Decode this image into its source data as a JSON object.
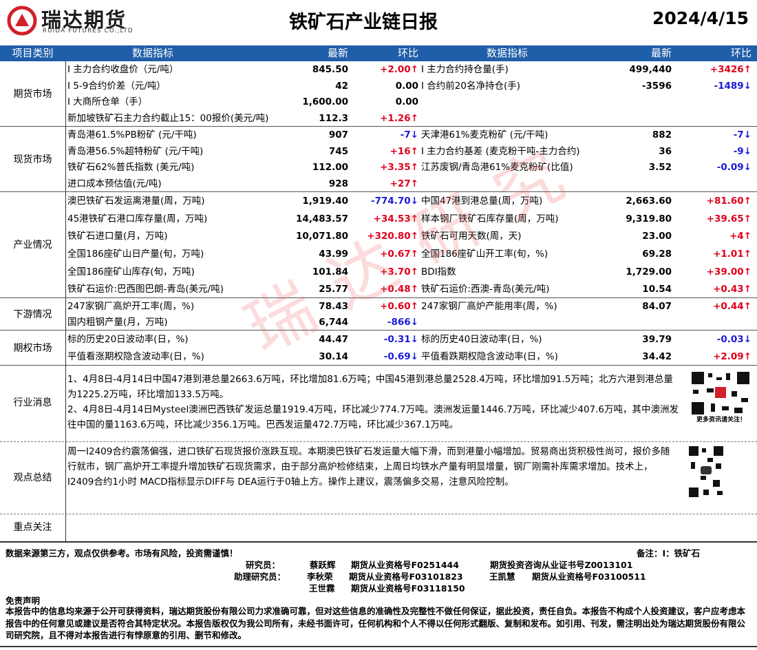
{
  "header": {
    "logo_name": "瑞达期货",
    "logo_sub": "RUIDA FUTURES CO.,LTD",
    "title": "铁矿石产业链日报",
    "date": "2024/4/15"
  },
  "columns": [
    "项目类别",
    "数据指标",
    "最新",
    "环比",
    "数据指标",
    "最新",
    "环比"
  ],
  "sections": [
    {
      "category": "期货市场",
      "rows": [
        {
          "left": {
            "name": "I 主力合约收盘价（元/吨）",
            "latest": "845.50",
            "change": "+2.00↑"
          },
          "right": {
            "name": "I 主力合约持仓量(手)",
            "latest": "499,440",
            "change": "+3426↑"
          }
        },
        {
          "left": {
            "name": "I 5-9合约价差（元/吨）",
            "latest": "42",
            "change": "0.00"
          },
          "right": {
            "name": "I 合约前20名净持仓(手)",
            "latest": "-3596",
            "change": "-1489↓"
          }
        },
        {
          "left": {
            "name": "I 大商所仓单（手）",
            "latest": "1,600.00",
            "change": "0.00"
          }
        },
        {
          "left": {
            "name": "新加坡铁矿石主力合约截止15：00报价(美元/吨)",
            "latest": "112.3",
            "change": "+1.26↑"
          }
        }
      ]
    },
    {
      "category": "现货市场",
      "rows": [
        {
          "left": {
            "name": "青岛港61.5%PB粉矿 (元/干吨)",
            "latest": "907",
            "change": "-7↓"
          },
          "right": {
            "name": "天津港61%麦克粉矿 (元/干吨)",
            "latest": "882",
            "change": "-7↓"
          }
        },
        {
          "left": {
            "name": "青岛港56.5%超特粉矿 (元/干吨)",
            "latest": "745",
            "change": "+16↑"
          },
          "right": {
            "name": "I 主力合约基差 (麦克粉干吨-主力合约)",
            "latest": "36",
            "change": "-9↓"
          }
        },
        {
          "left": {
            "name": "铁矿石62%普氏指数 (美元/吨)",
            "latest": "112.00",
            "change": "+3.35↑"
          },
          "right": {
            "name": "江苏废钢/青岛港61%麦克粉矿(比值)",
            "latest": "3.52",
            "change": "-0.09↓"
          }
        },
        {
          "left": {
            "name": "进口成本预估值(元/吨)",
            "latest": "928",
            "change": "+27↑"
          }
        }
      ]
    },
    {
      "category": "产业情况",
      "rows": [
        {
          "left": {
            "name": "澳巴铁矿石发运离港量(周，万吨)",
            "latest": "1,919.40",
            "change": "-774.70↓"
          },
          "right": {
            "name": "中国47港到港总量(周，万吨)",
            "latest": "2,663.60",
            "change": "+81.60↑"
          }
        },
        {
          "left": {
            "name": "45港铁矿石港口库存量(周，万吨)",
            "latest": "14,483.57",
            "change": "+34.53↑"
          },
          "right": {
            "name": "样本钢厂铁矿石库存量(周，万吨)",
            "latest": "9,319.80",
            "change": "+39.65↑"
          }
        },
        {
          "left": {
            "name": "铁矿石进口量(月，万吨)",
            "latest": "10,071.80",
            "change": "+320.80↑"
          },
          "right": {
            "name": "铁矿石可用天数(周，天)",
            "latest": "23.00",
            "change": "+4↑"
          }
        },
        {
          "left": {
            "name": "全国186座矿山日产量(旬，万吨)",
            "latest": "43.99",
            "change": "+0.67↑"
          },
          "right": {
            "name": "全国186座矿山开工率(旬，%)",
            "latest": "69.28",
            "change": "+1.01↑"
          }
        },
        {
          "left": {
            "name": "全国186座矿山库存(旬，万吨)",
            "latest": "101.84",
            "change": "+3.70↑"
          },
          "right": {
            "name": "BDI指数",
            "latest": "1,729.00",
            "change": "+39.00↑"
          }
        },
        {
          "left": {
            "name": "铁矿石运价:巴西图巴朗-青岛(美元/吨)",
            "latest": "25.77",
            "change": "+0.48↑"
          },
          "right": {
            "name": "铁矿石运价:西澳-青岛(美元/吨)",
            "latest": "10.54",
            "change": "+0.43↑"
          }
        }
      ]
    },
    {
      "category": "下游情况",
      "rows": [
        {
          "left": {
            "name": "247家钢厂高炉开工率(周，%)",
            "latest": "78.43",
            "change": "+0.60↑"
          },
          "right": {
            "name": "247家钢厂高炉产能用率(周，%)",
            "latest": "84.07",
            "change": "+0.44↑"
          }
        },
        {
          "left": {
            "name": "国内粗钢产量(月，万吨)",
            "latest": "6,744",
            "change": "-866↓"
          }
        }
      ]
    },
    {
      "category": "期权市场",
      "rows": [
        {
          "left": {
            "name": "标的历史20日波动率(日，%)",
            "latest": "44.47",
            "change": "-0.31↓"
          },
          "right": {
            "name": "标的历史40日波动率(日，%)",
            "latest": "39.79",
            "change": "-0.03↓"
          }
        },
        {
          "left": {
            "name": "平值看涨期权隐含波动率(日，%)",
            "latest": "30.14",
            "change": "-0.69↓"
          },
          "right": {
            "name": "平值看跌期权隐含波动率(日，%)",
            "latest": "34.42",
            "change": "+2.09↑"
          }
        }
      ]
    }
  ],
  "news": {
    "category": "行业消息",
    "paragraphs": [
      "1、4月8日-4月14日中国47港到港总量2663.6万吨，环比增加81.6万吨；中国45港到港总量2528.4万吨，环比增加91.5万吨；北方六港到港总量为1225.2万吨，环比增加133.5万吨。",
      "2、4月8日-4月14日Mysteel澳洲巴西铁矿发运总量1919.4万吨，环比减少774.7万吨。澳洲发运量1446.7万吨，环比减少407.6万吨，其中澳洲发往中国的量1163.6万吨，环比减少356.1万吨。巴西发运量472.7万吨，环比减少367.1万吨。"
    ],
    "qr_caption": "更多资讯请关注！"
  },
  "view": {
    "category": "观点总结",
    "text": "周一I2409合约震荡偏强，进口铁矿石现货报价涨跌互现。本期澳巴铁矿石发运量大幅下滑，而到港量小幅增加。贸易商出货积极性尚可，报价多随行就市，钢厂高炉开工率提升增加铁矿石现货需求，由于部分高炉检修结束，上周日均铁水产量有明显增量，钢厂刚需补库需求增加。技术上，I2409合约1小时 MACD指标显示DIFF与 DEA运行于0轴上方。操作上建议，震荡偏多交易，注意风险控制。"
  },
  "focus": {
    "category": "重点关注"
  },
  "footer": {
    "note": "数据来源第三方，观点仅供参考。市场有风险，投资需谨慎！",
    "remark": "备注：I：铁矿石",
    "staff": [
      [
        "研究员：",
        "蔡跃辉",
        "期货从业资格号F0251444",
        "期货投资咨询从业证书号Z0013101"
      ],
      [
        "助理研究员：",
        "李秋荣",
        "期货从业资格号F03101823",
        "王凯慧",
        "期货从业资格号F03100511"
      ],
      [
        "王世霖",
        "期货从业资格号F03118150"
      ]
    ],
    "disclaimer_title": "免责声明",
    "disclaimer": "本报告中的信息均来源于公开可获得资料，瑞达期货股份有限公司力求准确可靠，但对这些信息的准确性及完整性不做任何保证，据此投资，责任自负。本报告不构成个人投资建议，客户应考虑本报告中的任何意见或建议是否符合其特定状况。本报告版权仅为我公司所有，未经书面许可，任何机构和个人不得以任何形式翻版、复制和发布。如引用、刊发，需注明出处为瑞达期货股份有限公司研究院，且不得对本报告进行有悖原意的引用、删节和修改。"
  },
  "watermark": "瑞达研究"
}
